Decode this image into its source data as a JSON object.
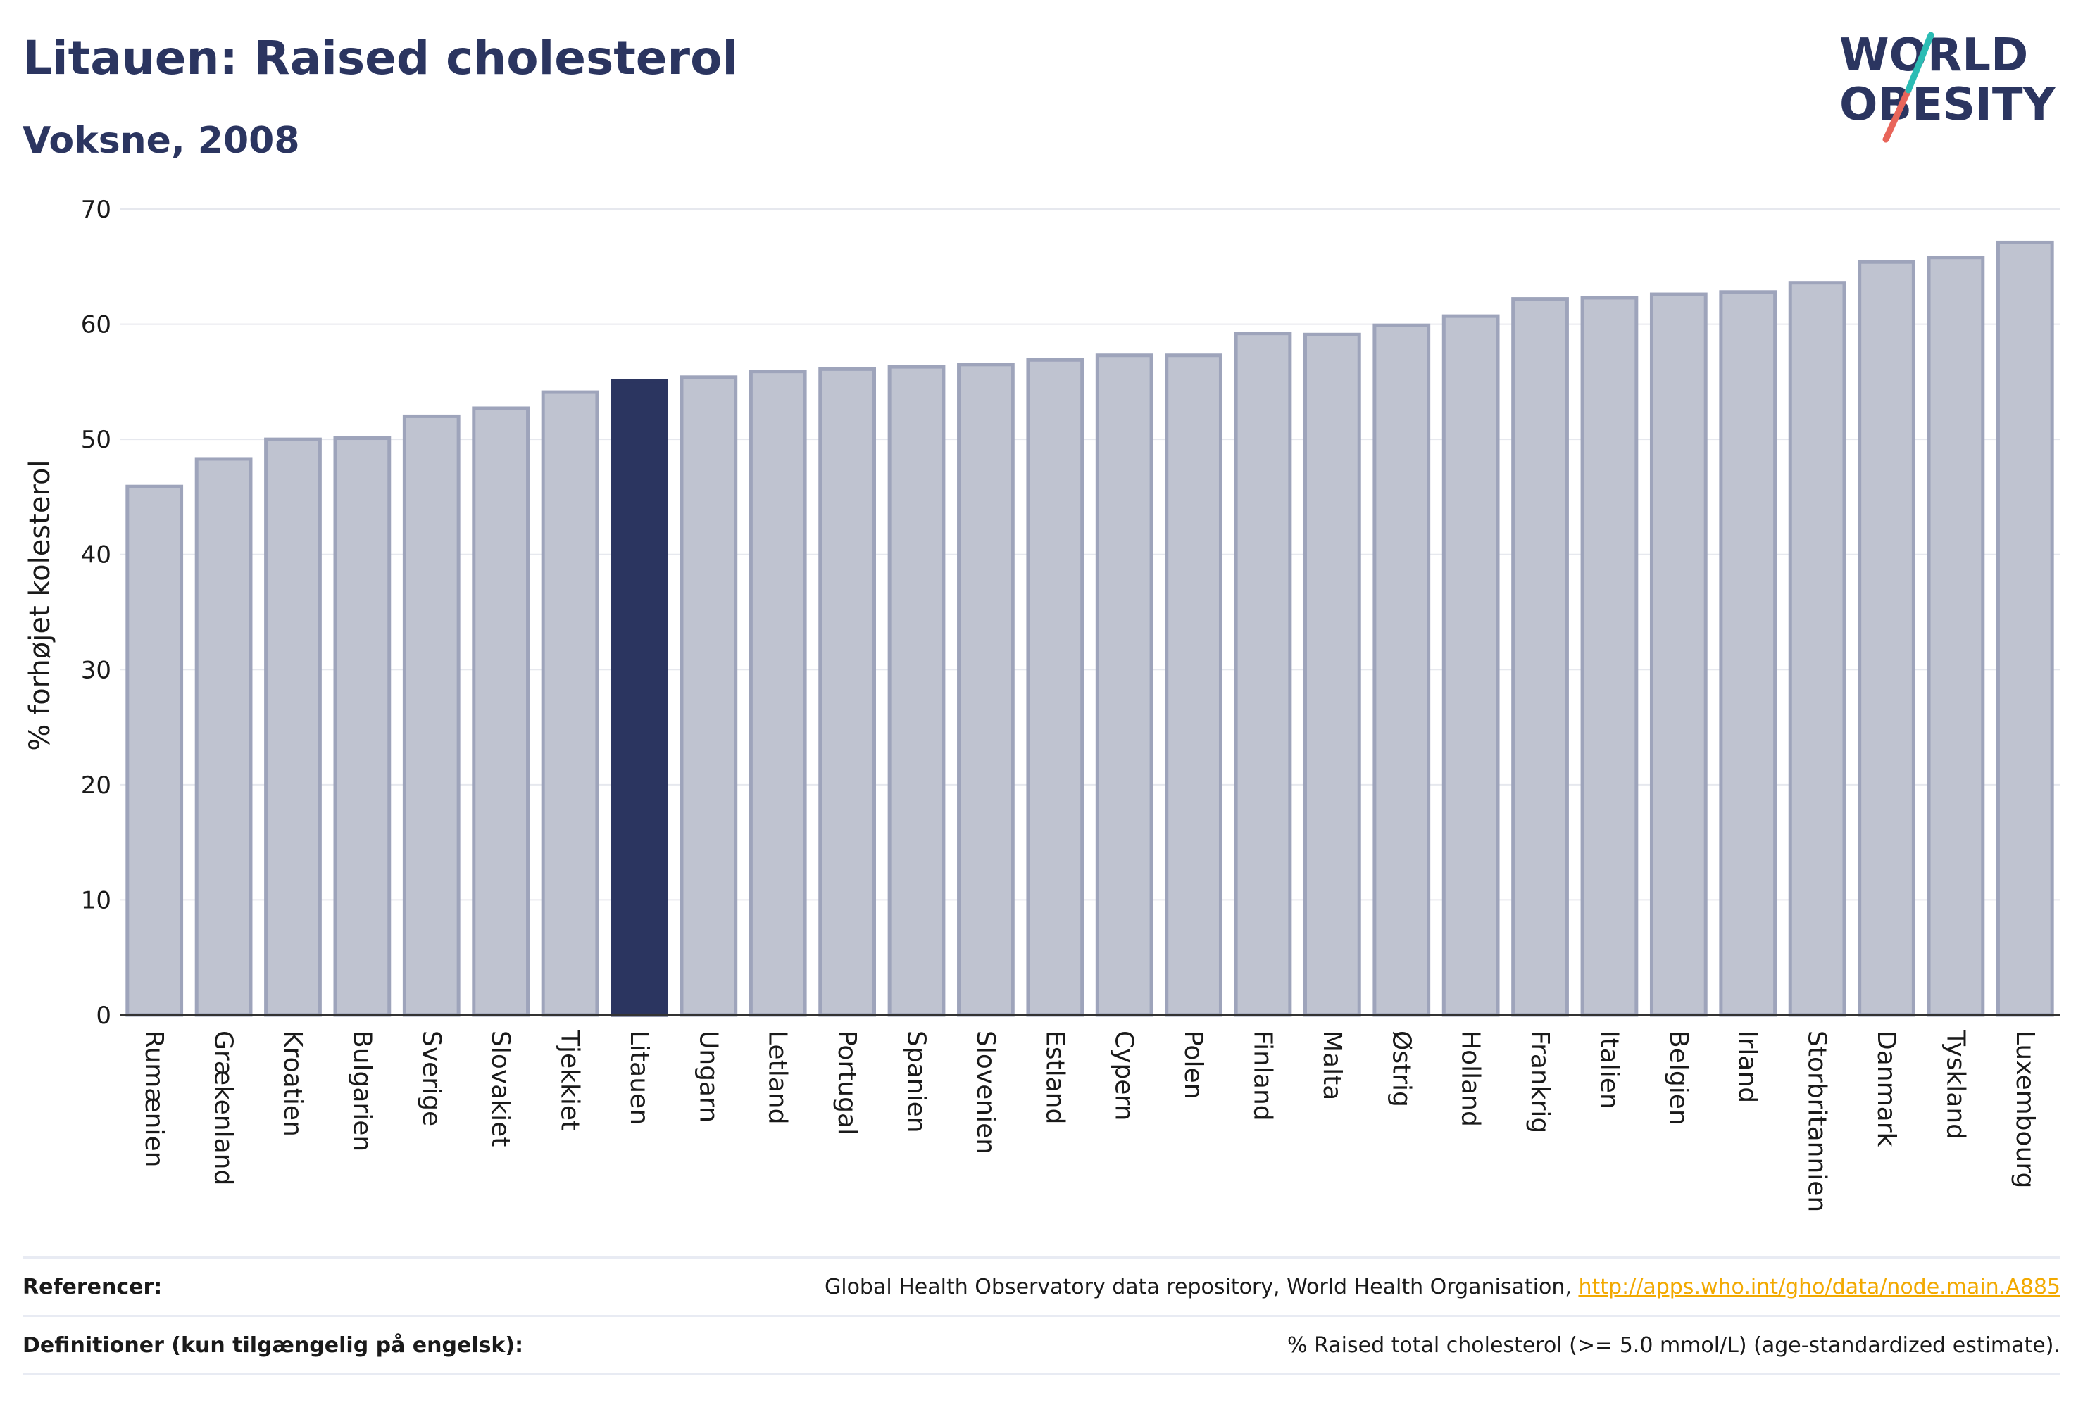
{
  "header": {
    "title": "Litauen: Raised cholesterol",
    "subtitle": "Voksne, 2008"
  },
  "logo": {
    "line1": "WORLD",
    "line2": "OBESITY"
  },
  "colors": {
    "highlight": "#2b3560",
    "bar_fill": "#bfc3d0",
    "bar_stroke": "#9ea4bb",
    "link": "#f2a900"
  },
  "chart_data": {
    "type": "bar",
    "title": "Litauen: Raised cholesterol",
    "subtitle": "Voksne, 2008",
    "ylabel": "% forhøjet kolesterol",
    "ylim": [
      0,
      70
    ],
    "yticks": [
      0,
      10,
      20,
      30,
      40,
      50,
      60,
      70
    ],
    "grid": true,
    "highlight": "Litauen",
    "categories": [
      "Rumænien",
      "Grækenland",
      "Kroatien",
      "Bulgarien",
      "Sverige",
      "Slovakiet",
      "Tjekkiet",
      "Litauen",
      "Ungarn",
      "Letland",
      "Portugal",
      "Spanien",
      "Slovenien",
      "Estland",
      "Cypern",
      "Polen",
      "Finland",
      "Malta",
      "Østrig",
      "Holland",
      "Frankrig",
      "Italien",
      "Belgien",
      "Irland",
      "Storbritannien",
      "Danmark",
      "Tyskland",
      "Luxembourg"
    ],
    "values": [
      45.9,
      48.3,
      50.0,
      50.1,
      52.0,
      52.7,
      54.1,
      55.1,
      55.4,
      55.9,
      56.1,
      56.3,
      56.5,
      56.9,
      57.3,
      57.3,
      59.2,
      59.1,
      59.9,
      60.7,
      62.2,
      62.3,
      62.6,
      62.8,
      63.6,
      65.4,
      65.8,
      67.1
    ]
  },
  "footer": {
    "references_label": "Referencer:",
    "references_text": "Global Health Observatory data repository, World Health Organisation,",
    "references_link": "http://apps.who.int/gho/data/node.main.A885",
    "definitions_label": "Definitioner (kun tilgængelig på engelsk):",
    "definitions_text": "% Raised total cholesterol (>= 5.0 mmol/L) (age-standardized estimate)."
  }
}
